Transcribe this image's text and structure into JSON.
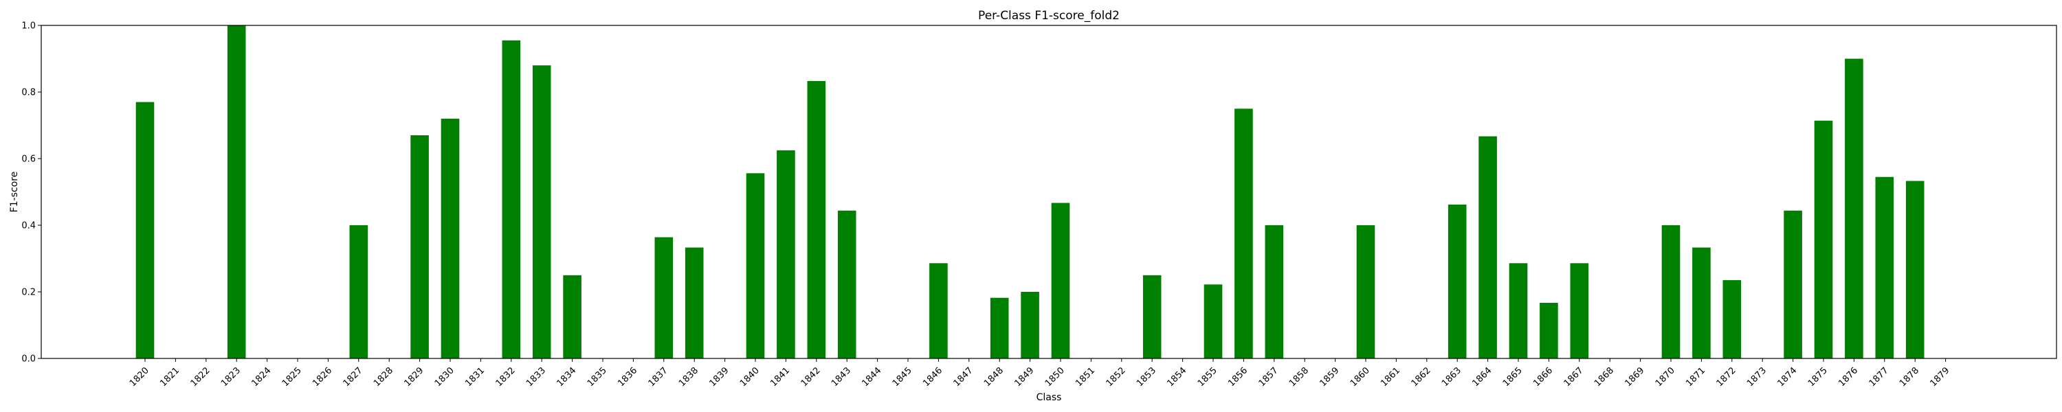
{
  "chart_data": {
    "type": "bar",
    "title": "Per-Class F1-score_fold2",
    "xlabel": "Class",
    "ylabel": "F1-score",
    "ylim": [
      0,
      1.0
    ],
    "yticks": [
      "0.0",
      "0.2",
      "0.4",
      "0.6",
      "0.8",
      "1.0"
    ],
    "grid": false,
    "bar_color": "#008000",
    "categories": [
      "1820",
      "1821",
      "1822",
      "1823",
      "1824",
      "1825",
      "1826",
      "1827",
      "1828",
      "1829",
      "1830",
      "1831",
      "1832",
      "1833",
      "1834",
      "1835",
      "1836",
      "1837",
      "1838",
      "1839",
      "1840",
      "1841",
      "1842",
      "1843",
      "1844",
      "1845",
      "1846",
      "1847",
      "1848",
      "1849",
      "1850",
      "1851",
      "1852",
      "1853",
      "1854",
      "1855",
      "1856",
      "1857",
      "1858",
      "1859",
      "1860",
      "1861",
      "1862",
      "1863",
      "1864",
      "1865",
      "1866",
      "1867",
      "1868",
      "1869",
      "1870",
      "1871",
      "1872",
      "1873",
      "1874",
      "1875",
      "1876",
      "1877",
      "1878",
      "1879"
    ],
    "values": [
      0.77,
      0,
      0,
      1.0,
      0,
      0,
      0,
      0.4,
      0,
      0.67,
      0.72,
      0,
      0.955,
      0.88,
      0.25,
      0,
      0,
      0.364,
      0.333,
      0,
      0.556,
      0.625,
      0.833,
      0.444,
      0,
      0,
      0.286,
      0,
      0.182,
      0.2,
      0.467,
      0,
      0,
      0.25,
      0,
      0.222,
      0.75,
      0.4,
      0,
      0,
      0.4,
      0,
      0,
      0.462,
      0.667,
      0.286,
      0.167,
      0.286,
      0,
      0,
      0.4,
      0.333,
      0.235,
      0,
      0.444,
      0.714,
      0.9,
      0.545,
      0.533,
      0
    ]
  }
}
